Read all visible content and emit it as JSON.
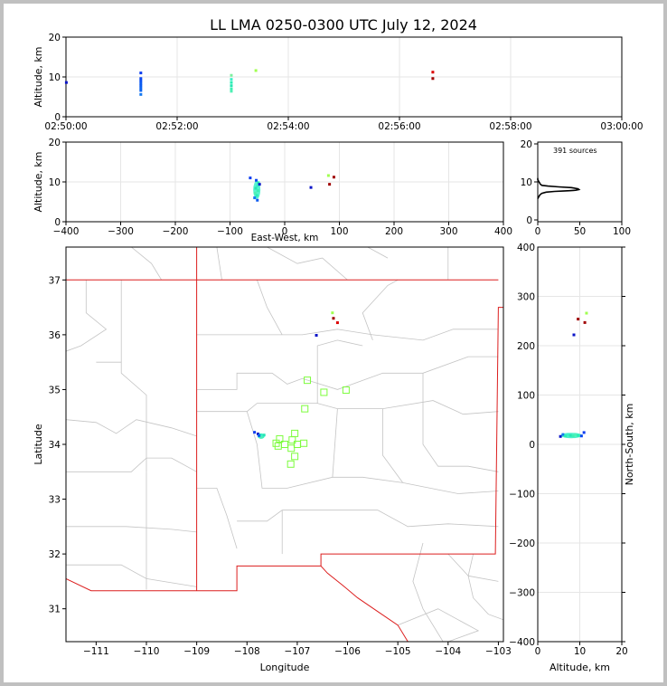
{
  "title": "LL LMA 0250-0300 UTC July 12, 2024",
  "chart_data": [
    {
      "panel": "time-altitude",
      "type": "scatter",
      "ylabel": "Altitude, km",
      "xlim": [
        "02:50:00",
        "03:00:00"
      ],
      "ylim": [
        0,
        20
      ],
      "xticks": [
        "02:50:00",
        "02:52:00",
        "02:54:00",
        "02:56:00",
        "02:58:00",
        "03:00:00"
      ],
      "yticks": [
        "0",
        "10",
        "20"
      ],
      "grid": true,
      "points": [
        {
          "t": 0.4,
          "alt": 8.6,
          "color": "#0a14c8"
        },
        {
          "t": 80.8,
          "alt": 11.0,
          "color": "#0a3cf0"
        },
        {
          "t": 80.8,
          "alt": 9.6,
          "color": "#0a46f0"
        },
        {
          "t": 80.8,
          "alt": 9.0,
          "color": "#0a50f0"
        },
        {
          "t": 80.8,
          "alt": 8.4,
          "color": "#0a5af0"
        },
        {
          "t": 80.8,
          "alt": 7.8,
          "color": "#0a5af0"
        },
        {
          "t": 80.8,
          "alt": 7.2,
          "color": "#0a64f0"
        },
        {
          "t": 80.8,
          "alt": 6.6,
          "color": "#0a64f0"
        },
        {
          "t": 80.8,
          "alt": 5.6,
          "color": "#1478f0"
        },
        {
          "t": 178.5,
          "alt": 10.4,
          "color": "#7df0a0"
        },
        {
          "t": 178.5,
          "alt": 9.4,
          "color": "#3cf0c8"
        },
        {
          "t": 178.5,
          "alt": 8.6,
          "color": "#28f0b4"
        },
        {
          "t": 178.5,
          "alt": 7.8,
          "color": "#28e6b4"
        },
        {
          "t": 178.5,
          "alt": 7.0,
          "color": "#3cf0b4"
        },
        {
          "t": 178.5,
          "alt": 6.4,
          "color": "#50f0b4"
        },
        {
          "t": 205.0,
          "alt": 11.6,
          "color": "#a0ff50"
        },
        {
          "t": 396.0,
          "alt": 11.2,
          "color": "#dc0000"
        },
        {
          "t": 396.0,
          "alt": 9.6,
          "color": "#a00000"
        }
      ]
    },
    {
      "panel": "eastwest-altitude",
      "type": "scatter",
      "xlabel": "East-West, km",
      "ylabel": "Altitude, km",
      "xlim": [
        -400,
        400
      ],
      "ylim": [
        0,
        20
      ],
      "xticks": [
        "−400",
        "−300",
        "−200",
        "−100",
        "0",
        "100",
        "200",
        "300",
        "400"
      ],
      "yticks": [
        "0",
        "10",
        "20"
      ],
      "grid": true,
      "points": [
        {
          "x": -63,
          "alt": 11.0,
          "color": "#0a3cf0"
        },
        {
          "x": -52,
          "alt": 10.4,
          "color": "#0a46f0"
        },
        {
          "x": -48,
          "alt": 9.8,
          "color": "#28f0b4"
        },
        {
          "x": -50,
          "alt": 9.0,
          "color": "#3cf0c8"
        },
        {
          "x": -53,
          "alt": 8.4,
          "color": "#28e6b4"
        },
        {
          "x": -49,
          "alt": 7.8,
          "color": "#3cf0b4"
        },
        {
          "x": -54,
          "alt": 7.2,
          "color": "#50f0b4"
        },
        {
          "x": -51,
          "alt": 6.6,
          "color": "#28f0b4"
        },
        {
          "x": -55,
          "alt": 6.0,
          "color": "#1478f0"
        },
        {
          "x": -50,
          "alt": 5.4,
          "color": "#0a5af0"
        },
        {
          "x": -46,
          "alt": 9.4,
          "color": "#0a14c8"
        },
        {
          "x": 48,
          "alt": 8.6,
          "color": "#0a14c8"
        },
        {
          "x": 80,
          "alt": 11.6,
          "color": "#a0ff50"
        },
        {
          "x": 90,
          "alt": 11.2,
          "color": "#a00000"
        },
        {
          "x": 82,
          "alt": 9.4,
          "color": "#a00000"
        }
      ]
    },
    {
      "panel": "altitude-histogram",
      "type": "line",
      "annotation": "391 sources",
      "xlim": [
        0,
        100
      ],
      "ylim": [
        0,
        20
      ],
      "xticks": [
        "0",
        "50",
        "100"
      ],
      "yticks": [
        "0",
        "10",
        "20"
      ],
      "x": [
        0,
        1,
        2,
        3,
        5,
        10,
        20,
        30,
        38,
        45,
        49,
        48,
        40,
        25,
        12,
        5,
        3,
        2,
        1,
        0,
        0
      ],
      "y": [
        5.6,
        6.0,
        6.4,
        6.7,
        7.0,
        7.3,
        7.5,
        7.6,
        7.7,
        7.8,
        8.0,
        8.2,
        8.5,
        8.7,
        8.9,
        9.1,
        9.4,
        9.8,
        10.2,
        10.6,
        11.0
      ]
    },
    {
      "panel": "plan-view",
      "type": "scatter",
      "xlabel": "Longitude",
      "ylabel": "Latitude",
      "xlim": [
        -111.6,
        -102.9
      ],
      "ylim": [
        30.4,
        37.6
      ],
      "xticks": [
        "−111",
        "−110",
        "−109",
        "−108",
        "−107",
        "−106",
        "−105",
        "−104",
        "−103"
      ],
      "yticks": [
        "31",
        "32",
        "33",
        "34",
        "35",
        "36",
        "37"
      ],
      "stations": [
        {
          "lon": -106.8,
          "lat": 35.17
        },
        {
          "lon": -106.47,
          "lat": 34.95
        },
        {
          "lon": -106.03,
          "lat": 34.99
        },
        {
          "lon": -106.85,
          "lat": 34.65
        },
        {
          "lon": -107.05,
          "lat": 34.2
        },
        {
          "lon": -107.1,
          "lat": 34.08
        },
        {
          "lon": -107.35,
          "lat": 34.1
        },
        {
          "lon": -107.42,
          "lat": 34.02
        },
        {
          "lon": -107.38,
          "lat": 33.97
        },
        {
          "lon": -107.25,
          "lat": 34.0
        },
        {
          "lon": -107.12,
          "lat": 33.93
        },
        {
          "lon": -107.0,
          "lat": 34.0
        },
        {
          "lon": -106.87,
          "lat": 34.02
        },
        {
          "lon": -107.05,
          "lat": 33.78
        },
        {
          "lon": -107.13,
          "lat": 33.64
        }
      ],
      "points": [
        {
          "lon": -107.85,
          "lat": 34.22,
          "color": "#0a3cf0"
        },
        {
          "lon": -107.78,
          "lat": 34.19,
          "color": "#0a14c8"
        },
        {
          "lon": -107.74,
          "lat": 34.17,
          "color": "#28f0b4"
        },
        {
          "lon": -107.7,
          "lat": 34.15,
          "color": "#3cf0c8"
        },
        {
          "lon": -107.72,
          "lat": 34.13,
          "color": "#50f0b4"
        },
        {
          "lon": -107.76,
          "lat": 34.16,
          "color": "#0a5af0"
        },
        {
          "lon": -107.66,
          "lat": 34.17,
          "color": "#28e6b4"
        },
        {
          "lon": -106.62,
          "lat": 35.99,
          "color": "#0a14c8"
        },
        {
          "lon": -106.3,
          "lat": 36.4,
          "color": "#a0ff50"
        },
        {
          "lon": -106.28,
          "lat": 36.3,
          "color": "#a00000"
        },
        {
          "lon": -106.2,
          "lat": 36.22,
          "color": "#dc0000"
        }
      ]
    },
    {
      "panel": "altitude-northsouth",
      "type": "scatter",
      "xlabel": "Altitude, km",
      "ylabel": "North-South, km",
      "xlim": [
        0,
        20
      ],
      "ylim": [
        -400,
        400
      ],
      "xticks": [
        "0",
        "10",
        "20"
      ],
      "yticks": [
        "−400",
        "−300",
        "−200",
        "−100",
        "0",
        "100",
        "200",
        "300",
        "400"
      ],
      "grid": true,
      "points": [
        {
          "alt": 5.4,
          "ns": 16,
          "color": "#0a14c8"
        },
        {
          "alt": 6.0,
          "ns": 20,
          "color": "#1478f0"
        },
        {
          "alt": 6.6,
          "ns": 17,
          "color": "#28f0b4"
        },
        {
          "alt": 7.2,
          "ns": 19,
          "color": "#3cf0c8"
        },
        {
          "alt": 7.8,
          "ns": 18,
          "color": "#28e6b4"
        },
        {
          "alt": 8.4,
          "ns": 17,
          "color": "#3cf0b4"
        },
        {
          "alt": 9.0,
          "ns": 19,
          "color": "#50f0b4"
        },
        {
          "alt": 9.6,
          "ns": 18,
          "color": "#28f0b4"
        },
        {
          "alt": 10.4,
          "ns": 17,
          "color": "#0a46f0"
        },
        {
          "alt": 11.0,
          "ns": 24,
          "color": "#0a3cf0"
        },
        {
          "alt": 8.6,
          "ns": 222,
          "color": "#0a14c8"
        },
        {
          "alt": 9.6,
          "ns": 254,
          "color": "#a00000"
        },
        {
          "alt": 11.2,
          "ns": 247,
          "color": "#a00000"
        },
        {
          "alt": 11.6,
          "ns": 266,
          "color": "#a0ff50"
        }
      ]
    }
  ]
}
